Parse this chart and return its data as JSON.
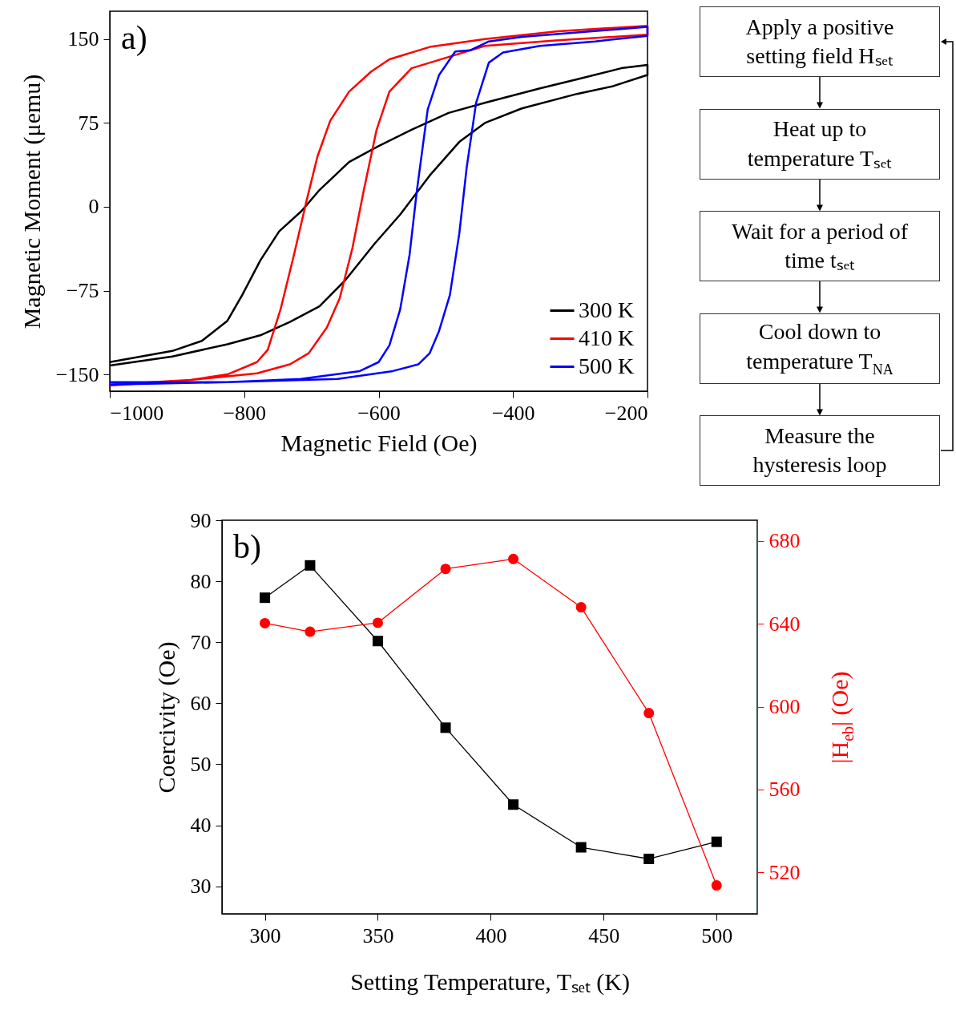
{
  "chart_data": [
    {
      "type": "line",
      "annotations": [
        "a)"
      ],
      "xlabel": "Magnetic Field (Oe)",
      "ylabel": "Magnetic Moment (μemu)",
      "xlim": [
        -1000,
        -200
      ],
      "xticks": [
        -1000,
        -800,
        -600,
        -400,
        -200
      ],
      "ylim": [
        -165,
        175
      ],
      "yticks": [
        -150,
        -75,
        0,
        75,
        150
      ],
      "legend": "bottom right",
      "series": [
        {
          "name": "300 K",
          "color": "#000000",
          "x": [
            -1000,
            -907,
            -825,
            -776,
            -732,
            -688,
            -650,
            -606,
            -568,
            -524,
            -480,
            -442,
            -387,
            -305,
            -251,
            -200,
            -200,
            -239,
            -305,
            -360,
            -442,
            -496,
            -551,
            -601,
            -644,
            -688,
            -715,
            -748,
            -776,
            -803,
            -825,
            -863,
            -907,
            -1000
          ],
          "values": [
            -142,
            -134,
            -123,
            -115,
            -103,
            -89,
            -66,
            -33,
            -7,
            28,
            58,
            75,
            88,
            101,
            108,
            118,
            127,
            124,
            114,
            106,
            93,
            84,
            69,
            54,
            40,
            15,
            -4,
            -22,
            -48,
            -79,
            -102,
            -120,
            -129,
            -139
          ]
        },
        {
          "name": "410 K",
          "color": "#ff0000",
          "x": [
            -1000,
            -880,
            -781,
            -732,
            -704,
            -677,
            -658,
            -639,
            -622,
            -603,
            -584,
            -551,
            -496,
            -442,
            -333,
            -200,
            -200,
            -333,
            -442,
            -524,
            -584,
            -611,
            -644,
            -672,
            -691,
            -707,
            -726,
            -746,
            -765,
            -781,
            -825,
            -880,
            -1000
          ],
          "values": [
            -160,
            -155,
            -149,
            -141,
            -131,
            -108,
            -82,
            -37,
            15,
            69,
            103,
            124,
            134,
            144,
            149,
            154,
            162,
            157,
            150,
            143,
            132,
            121,
            103,
            77,
            45,
            6,
            -43,
            -92,
            -128,
            -139,
            -150,
            -155,
            -159
          ]
        },
        {
          "name": "500 K",
          "color": "#0000ff",
          "x": [
            -1000,
            -825,
            -661,
            -579,
            -541,
            -524,
            -510,
            -494,
            -480,
            -469,
            -455,
            -436,
            -415,
            -360,
            -278,
            -200,
            -200,
            -305,
            -387,
            -436,
            -464,
            -486,
            -510,
            -527,
            -543,
            -554,
            -568,
            -584,
            -600,
            -628,
            -716,
            -825,
            -1000
          ],
          "values": [
            -159,
            -157,
            -154,
            -147,
            -141,
            -131,
            -111,
            -79,
            -24,
            35,
            93,
            129,
            138,
            144,
            148,
            153,
            161,
            156,
            152,
            148,
            140,
            139,
            118,
            87,
            15,
            -43,
            -92,
            -124,
            -139,
            -147,
            -154,
            -157,
            -157
          ]
        }
      ]
    },
    {
      "type": "other",
      "annotations": [
        "Apply a positive setting field Hₛₑₜ",
        "Heat up to temperature Tₛₑₜ",
        "Wait for a period of time tₛₑₜ",
        "Cool down to temperature T$_{NA}$",
        "Measure the hysteresis loop"
      ]
    },
    {
      "type": "line",
      "annotations": [
        "b)"
      ],
      "xlabel": "Setting Temperature, Tₛₑₜ (K)",
      "ylabel": "Coercivity (Oe)",
      "y2label": "|H$_{eb}$| (Oe)",
      "x": [
        300,
        320,
        350,
        380,
        410,
        440,
        470,
        500
      ],
      "xlim": [
        281,
        518
      ],
      "xticks": [
        300,
        350,
        400,
        450,
        500
      ],
      "ylim": [
        25.5,
        90
      ],
      "yticks": [
        30,
        40,
        50,
        60,
        70,
        80,
        90
      ],
      "y2lim": [
        500,
        690
      ],
      "y2ticks": [
        520,
        560,
        600,
        640,
        680
      ],
      "series": [
        {
          "color": "#000000",
          "marker": "square",
          "values": [
            77.3,
            82.6,
            70.2,
            56.0,
            43.4,
            36.4,
            34.5,
            37.3
          ]
        },
        {
          "color": "#ff0000",
          "marker": "circle",
          "axis": "y2",
          "values": [
            640.3,
            636.2,
            640.5,
            666.5,
            671.3,
            648.0,
            596.9,
            513.7
          ]
        }
      ]
    }
  ]
}
